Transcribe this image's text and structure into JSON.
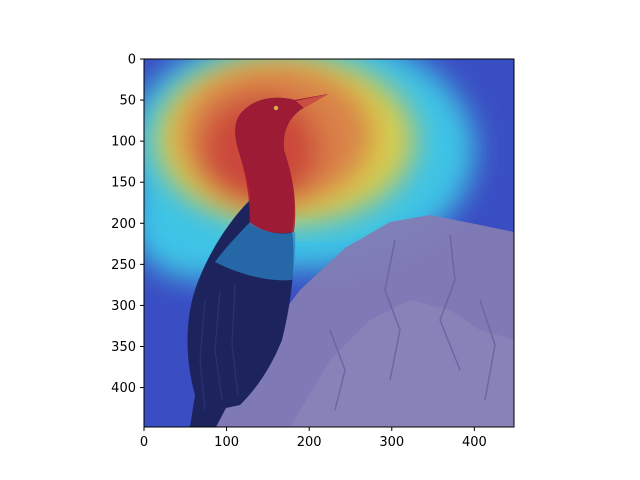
{
  "chart_data": {
    "type": "heatmap",
    "title": "",
    "xlabel": "",
    "ylabel": "",
    "image_size": [
      448,
      448
    ],
    "xlim": [
      0,
      448
    ],
    "ylim": [
      448,
      0
    ],
    "x_ticks": [
      0,
      100,
      200,
      300,
      400
    ],
    "y_ticks": [
      0,
      50,
      100,
      150,
      200,
      250,
      300,
      350,
      400
    ],
    "x_tick_labels": [
      "0",
      "100",
      "200",
      "300",
      "400"
    ],
    "y_tick_labels": [
      "0",
      "50",
      "100",
      "150",
      "200",
      "250",
      "300",
      "350",
      "400"
    ],
    "colormap": "jet",
    "grid": false,
    "legend": "none",
    "overlay_description": "Attention heatmap (jet colormap) overlaid on a photo of a cormorant perched on a rock; hottest region over the bird's head, neck and beak.",
    "colors": {
      "background_cold": "#3a4fc8",
      "hot": "#d91a1a",
      "warm": "#f0d23c",
      "mid": "#38d8e8",
      "rock": "#8c84b0",
      "bird": "#1a1f4a"
    }
  }
}
